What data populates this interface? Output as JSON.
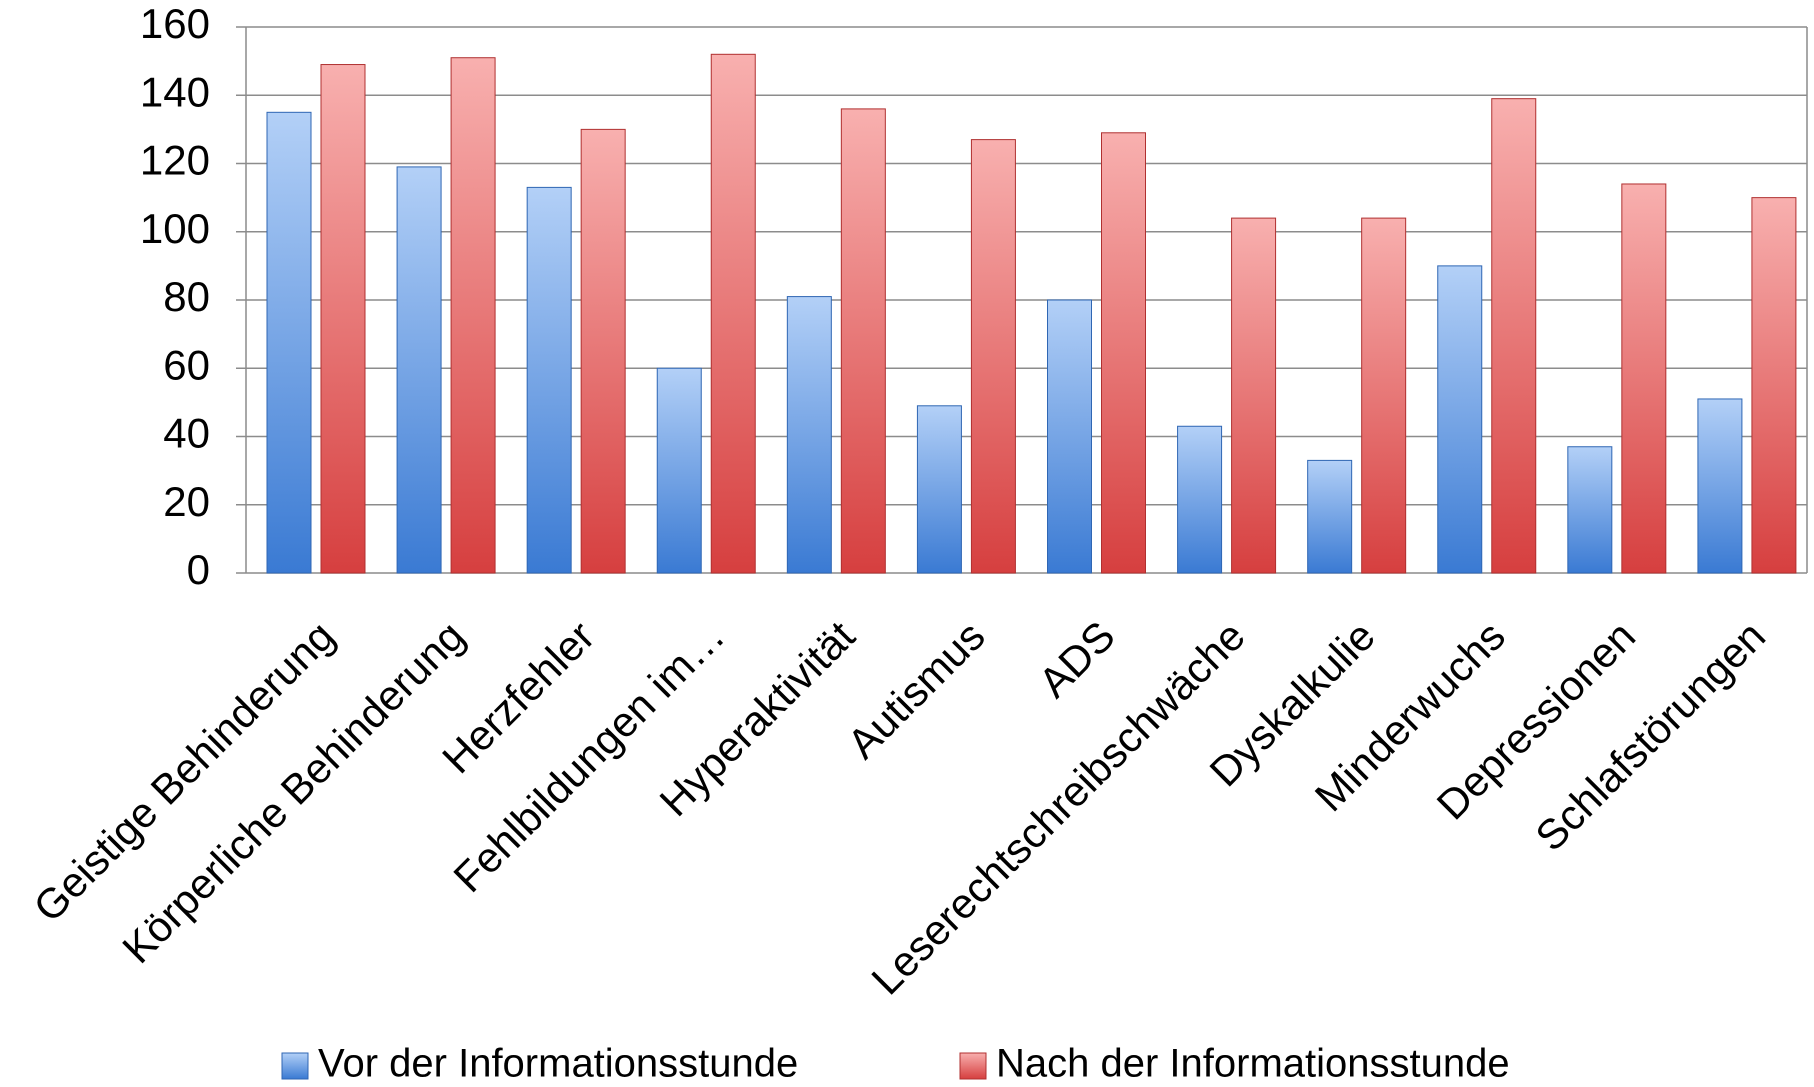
{
  "chart_data": {
    "type": "bar",
    "categories": [
      "Geistige Behinderung",
      "Körperliche Behinderung",
      "Herzfehler",
      "Fehlbildungen im…",
      "Hyperaktivität",
      "Autismus",
      "ADS",
      "Leserechtschreibschwäche",
      "Dyskalkulie",
      "Minderwuchs",
      "Depressionen",
      "Schlafstörungen"
    ],
    "series": [
      {
        "name": "Vor der Informationsstunde",
        "color": "#4f8de0",
        "values": [
          135,
          119,
          113,
          60,
          81,
          49,
          80,
          43,
          33,
          90,
          37,
          51
        ]
      },
      {
        "name": "Nach der Informationsstunde",
        "color": "#e05555",
        "values": [
          149,
          151,
          130,
          152,
          136,
          127,
          129,
          104,
          104,
          139,
          114,
          110
        ]
      }
    ],
    "ylim": [
      0,
      160
    ],
    "yticks": [
      0,
      20,
      40,
      60,
      80,
      100,
      120,
      140,
      160
    ],
    "grid": true,
    "legend": "bottom"
  }
}
